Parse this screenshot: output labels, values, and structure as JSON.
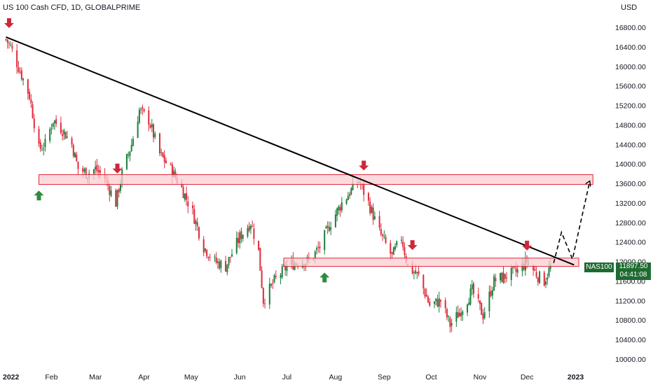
{
  "header": {
    "title": "US 100 Cash CFD, 1D, GLOBALPRIME",
    "currency": "USD"
  },
  "badge": {
    "symbol": "NAS100",
    "price": "11897.50",
    "countdown": "04:41:08"
  },
  "colors": {
    "up": "#1a7f3c",
    "down": "#e0293a",
    "zone_fill": "#f9cdd2",
    "zone_stroke": "#e0293a",
    "trendline": "#000000",
    "arrow_down": "#d0273a",
    "arrow_up": "#2e8b3e"
  },
  "chart_data": {
    "type": "candlestick",
    "y_axis": {
      "min": 10000,
      "max": 16800,
      "step": 400,
      "ticks": [
        "16800.00",
        "16400.00",
        "16000.00",
        "15600.00",
        "15200.00",
        "14800.00",
        "14400.00",
        "14000.00",
        "13600.00",
        "13200.00",
        "12800.00",
        "12400.00",
        "12000.00",
        "11600.00",
        "11200.00",
        "10800.00",
        "10400.00",
        "10000.00"
      ]
    },
    "x_axis": {
      "ticks": [
        "2022",
        "Feb",
        "Mar",
        "Apr",
        "May",
        "Jun",
        "Jul",
        "Aug",
        "Sep",
        "Oct",
        "Nov",
        "Dec",
        "2023"
      ]
    },
    "close_path": [
      [
        "2022-01-03",
        16550
      ],
      [
        "2022-01-06",
        16400
      ],
      [
        "2022-01-12",
        15900
      ],
      [
        "2022-01-18",
        15400
      ],
      [
        "2022-01-24",
        14300
      ],
      [
        "2022-01-28",
        14400
      ],
      [
        "2022-02-02",
        14900
      ],
      [
        "2022-02-08",
        14700
      ],
      [
        "2022-02-14",
        14400
      ],
      [
        "2022-02-18",
        13900
      ],
      [
        "2022-02-24",
        13800
      ],
      [
        "2022-03-01",
        13900
      ],
      [
        "2022-03-07",
        13700
      ],
      [
        "2022-03-14",
        13200
      ],
      [
        "2022-03-18",
        13800
      ],
      [
        "2022-03-24",
        14400
      ],
      [
        "2022-03-29",
        15100
      ],
      [
        "2022-04-04",
        14900
      ],
      [
        "2022-04-11",
        14200
      ],
      [
        "2022-04-18",
        13900
      ],
      [
        "2022-04-25",
        13500
      ],
      [
        "2022-05-02",
        13000
      ],
      [
        "2022-05-09",
        12300
      ],
      [
        "2022-05-16",
        12000
      ],
      [
        "2022-05-23",
        11900
      ],
      [
        "2022-06-01",
        12500
      ],
      [
        "2022-06-08",
        12800
      ],
      [
        "2022-06-13",
        12200
      ],
      [
        "2022-06-16",
        11200
      ],
      [
        "2022-06-23",
        11600
      ],
      [
        "2022-07-01",
        11900
      ],
      [
        "2022-07-08",
        12000
      ],
      [
        "2022-07-15",
        12000
      ],
      [
        "2022-07-22",
        12300
      ],
      [
        "2022-07-29",
        12800
      ],
      [
        "2022-08-05",
        13200
      ],
      [
        "2022-08-12",
        13500
      ],
      [
        "2022-08-16",
        13650
      ],
      [
        "2022-08-22",
        13200
      ],
      [
        "2022-08-29",
        12600
      ],
      [
        "2022-09-06",
        12100
      ],
      [
        "2022-09-12",
        12500
      ],
      [
        "2022-09-16",
        11900
      ],
      [
        "2022-09-23",
        11700
      ],
      [
        "2022-09-30",
        11100
      ],
      [
        "2022-10-07",
        11200
      ],
      [
        "2022-10-13",
        10700
      ],
      [
        "2022-10-20",
        11000
      ],
      [
        "2022-10-27",
        11400
      ],
      [
        "2022-11-03",
        10900
      ],
      [
        "2022-11-10",
        11600
      ],
      [
        "2022-11-17",
        11700
      ],
      [
        "2022-11-25",
        11800
      ],
      [
        "2022-12-01",
        12000
      ],
      [
        "2022-12-08",
        11700
      ],
      [
        "2022-12-12",
        11600
      ],
      [
        "2022-12-14",
        11750
      ],
      [
        "2022-12-16",
        11897
      ]
    ],
    "resistance_zone": {
      "low": 13580,
      "high": 13780,
      "from": "2022-01-24",
      "to": "2023-01-12"
    },
    "support_zone": {
      "low": 11900,
      "high": 12070,
      "from": "2022-06-29",
      "to": "2023-01-03"
    },
    "trendline": {
      "from": [
        "2022-01-03",
        16600
      ],
      "to": [
        "2022-12-31",
        11930
      ]
    },
    "projection": [
      [
        "2022-12-18",
        11970
      ],
      [
        "2022-12-23",
        12600
      ],
      [
        "2022-12-30",
        12050
      ],
      [
        "2023-01-10",
        13650
      ]
    ],
    "arrows_down": [
      "2022-01-05",
      "2022-03-15",
      "2022-08-19",
      "2022-09-19",
      "2022-12-01"
    ],
    "arrows_up": [
      "2022-01-24",
      "2022-07-25"
    ],
    "last_price": 11897.5
  }
}
